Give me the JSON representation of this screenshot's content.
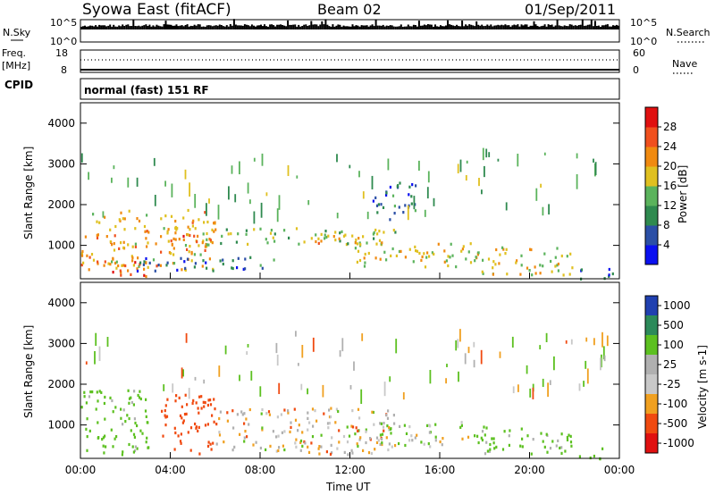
{
  "header": {
    "station": "Syowa East (fitACF)",
    "beam": "Beam 02",
    "date": "01/Sep/2011"
  },
  "nsky_panel": {
    "left_label": "N.Sky",
    "right_label": "N.Search",
    "left_ticks": [
      "10^5",
      "10^0"
    ],
    "right_ticks": [
      "10^5",
      "10^0"
    ]
  },
  "freq_panel": {
    "left_label_1": "Freq.",
    "left_label_2": "[MHz]",
    "right_label": "Nave",
    "left_ticks": [
      "18",
      "8"
    ],
    "right_ticks": [
      "60",
      "0"
    ]
  },
  "cpid": {
    "label": "CPID",
    "value": "normal (fast) 151 RF"
  },
  "colors": {
    "power": [
      "#0a10f0",
      "#2b4fa6",
      "#2f8a4f",
      "#5bb35c",
      "#e0c020",
      "#f08a10",
      "#f0501e",
      "#e01010"
    ],
    "velocity": [
      "#e01010",
      "#f04a10",
      "#f0a020",
      "#c8c8c8",
      "#b0b0b0",
      "#5cc020",
      "#2c8a5a",
      "#2040b0"
    ]
  },
  "chart_data": [
    {
      "type": "heatmap",
      "panel": "power",
      "ylabel": "Slant Range [km]",
      "ylim": [
        180,
        4500
      ],
      "yticks": [
        1000,
        2000,
        3000,
        4000
      ],
      "xlim": [
        0,
        24
      ],
      "colorbar": {
        "label": "Power [dB]",
        "ticks": [
          "4",
          "8",
          "12",
          "16",
          "20",
          "24",
          "28"
        ],
        "range": [
          0,
          32
        ]
      },
      "echo_regions": [
        {
          "t0": 0.0,
          "t1": 6.0,
          "r0": 400,
          "r1": 1900,
          "level": 20
        },
        {
          "t0": 1.0,
          "t1": 3.0,
          "r0": 200,
          "r1": 650,
          "level": 26
        },
        {
          "t0": 4.0,
          "t1": 5.8,
          "r0": 900,
          "r1": 1350,
          "level": 24
        },
        {
          "t0": 5.5,
          "t1": 14.0,
          "r0": 1050,
          "r1": 1450,
          "level": 14
        },
        {
          "t0": 10.0,
          "t1": 12.5,
          "r0": 1050,
          "r1": 1350,
          "level": 22
        },
        {
          "t0": 2.5,
          "t1": 9.0,
          "r0": 400,
          "r1": 750,
          "level": 8
        },
        {
          "t0": 12.0,
          "t1": 17.5,
          "r0": 500,
          "r1": 1100,
          "level": 18
        },
        {
          "t0": 13.0,
          "t1": 15.0,
          "r0": 1600,
          "r1": 2600,
          "level": 8
        },
        {
          "t0": 17.5,
          "t1": 22.0,
          "r0": 300,
          "r1": 1000,
          "level": 18
        },
        {
          "t0": 22.0,
          "t1": 23.8,
          "r0": 200,
          "r1": 450,
          "level": 6
        }
      ]
    },
    {
      "type": "heatmap",
      "panel": "velocity",
      "ylabel": "Slant Range [km]",
      "ylim": [
        180,
        4500
      ],
      "yticks": [
        1000,
        2000,
        3000,
        4000
      ],
      "xlim": [
        0,
        24
      ],
      "xticks": [
        "00:00",
        "04:00",
        "08:00",
        "12:00",
        "16:00",
        "20:00",
        "00:00"
      ],
      "xlabel": "Time UT",
      "colorbar": {
        "label": "Velocity [m s-1]",
        "ticks": [
          "1000",
          "500",
          "100",
          "25",
          "-25",
          "-100",
          "-500",
          "-1000"
        ]
      },
      "echo_regions": [
        {
          "t0": 0.0,
          "t1": 3.0,
          "r0": 300,
          "r1": 1900,
          "level": 200
        },
        {
          "t0": 3.5,
          "t1": 6.0,
          "r0": 300,
          "r1": 1800,
          "level": -300
        },
        {
          "t0": 6.0,
          "t1": 14.0,
          "r0": 300,
          "r1": 1450,
          "level": 0
        },
        {
          "t0": 12.5,
          "t1": 17.5,
          "r0": 500,
          "r1": 1100,
          "level": 60
        },
        {
          "t0": 17.5,
          "t1": 22.0,
          "r0": 300,
          "r1": 1000,
          "level": 150
        },
        {
          "t0": 22.0,
          "t1": 23.5,
          "r0": 200,
          "r1": 450,
          "level": 300
        }
      ]
    }
  ]
}
